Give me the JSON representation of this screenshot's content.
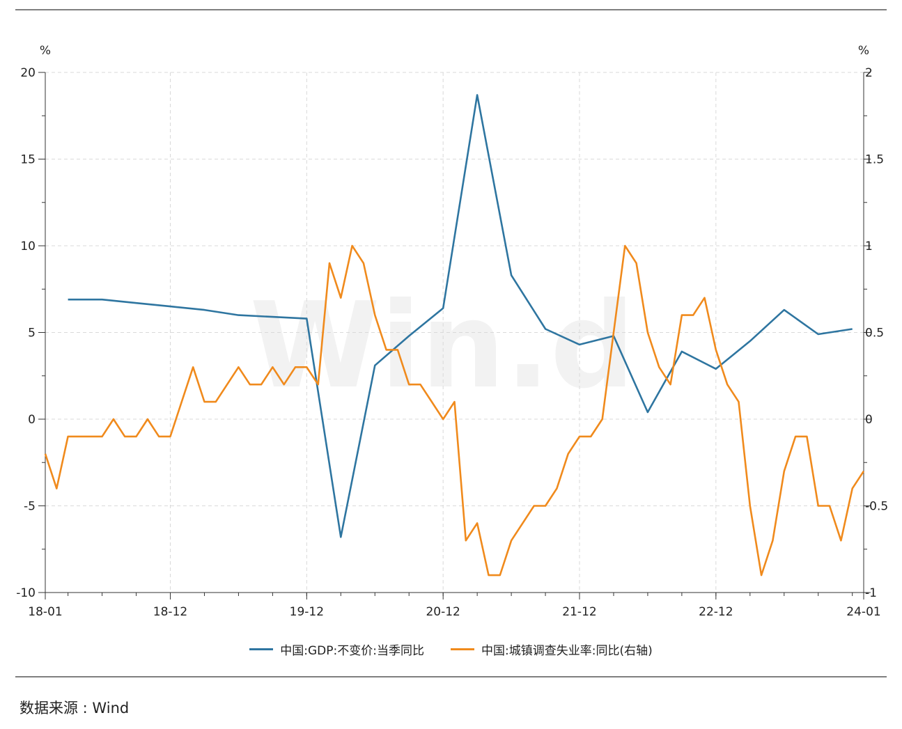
{
  "source_text": "数据来源 : Wind",
  "watermark": "Win.d",
  "chart_data": {
    "type": "line",
    "title": "",
    "x_ticks": [
      "18-01",
      "18-12",
      "19-12",
      "20-12",
      "21-12",
      "22-12",
      "24-01"
    ],
    "y_left": {
      "unit": "%",
      "range": [
        -10,
        20
      ],
      "ticks": [
        -10,
        -5,
        0,
        5,
        10,
        15,
        20
      ]
    },
    "y_right": {
      "unit": "%",
      "range": [
        -1,
        2
      ],
      "ticks": [
        -1,
        -0.5,
        0,
        0.5,
        1,
        1.5,
        2
      ]
    },
    "x_range": [
      "2018-01",
      "2024-01"
    ],
    "grid": true,
    "legend_position": "bottom",
    "series": [
      {
        "name": "中国:GDP:不变价:当季同比",
        "axis": "left",
        "color": "#2e75a0",
        "points": [
          [
            "2018-03",
            6.9
          ],
          [
            "2018-06",
            6.9
          ],
          [
            "2018-09",
            6.7
          ],
          [
            "2018-12",
            6.5
          ],
          [
            "2019-03",
            6.3
          ],
          [
            "2019-06",
            6.0
          ],
          [
            "2019-09",
            5.9
          ],
          [
            "2019-12",
            5.8
          ],
          [
            "2020-03",
            -6.8
          ],
          [
            "2020-06",
            3.1
          ],
          [
            "2020-09",
            4.8
          ],
          [
            "2020-12",
            6.4
          ],
          [
            "2021-03",
            18.7
          ],
          [
            "2021-06",
            8.3
          ],
          [
            "2021-09",
            5.2
          ],
          [
            "2021-12",
            4.3
          ],
          [
            "2022-03",
            4.8
          ],
          [
            "2022-06",
            0.4
          ],
          [
            "2022-09",
            3.9
          ],
          [
            "2022-12",
            2.9
          ],
          [
            "2023-03",
            4.5
          ],
          [
            "2023-06",
            6.3
          ],
          [
            "2023-09",
            4.9
          ],
          [
            "2023-12",
            5.2
          ]
        ]
      },
      {
        "name": "中国:城镇调查失业率:同比(右轴)",
        "axis": "right",
        "color": "#f08a1c",
        "points": [
          [
            "2018-01",
            -0.2
          ],
          [
            "2018-02",
            -0.4
          ],
          [
            "2018-03",
            -0.1
          ],
          [
            "2018-04",
            -0.1
          ],
          [
            "2018-05",
            -0.1
          ],
          [
            "2018-06",
            -0.1
          ],
          [
            "2018-07",
            0.0
          ],
          [
            "2018-08",
            -0.1
          ],
          [
            "2018-09",
            -0.1
          ],
          [
            "2018-10",
            0.0
          ],
          [
            "2018-11",
            -0.1
          ],
          [
            "2018-12",
            -0.1
          ],
          [
            "2019-01",
            0.1
          ],
          [
            "2019-02",
            0.3
          ],
          [
            "2019-03",
            0.1
          ],
          [
            "2019-04",
            0.1
          ],
          [
            "2019-05",
            0.2
          ],
          [
            "2019-06",
            0.3
          ],
          [
            "2019-07",
            0.2
          ],
          [
            "2019-08",
            0.2
          ],
          [
            "2019-09",
            0.3
          ],
          [
            "2019-10",
            0.2
          ],
          [
            "2019-11",
            0.3
          ],
          [
            "2019-12",
            0.3
          ],
          [
            "2020-01",
            0.2
          ],
          [
            "2020-02",
            0.9
          ],
          [
            "2020-03",
            0.7
          ],
          [
            "2020-04",
            1.0
          ],
          [
            "2020-05",
            0.9
          ],
          [
            "2020-06",
            0.6
          ],
          [
            "2020-07",
            0.4
          ],
          [
            "2020-08",
            0.4
          ],
          [
            "2020-09",
            0.2
          ],
          [
            "2020-10",
            0.2
          ],
          [
            "2020-11",
            0.1
          ],
          [
            "2020-12",
            0.0
          ],
          [
            "2021-01",
            0.1
          ],
          [
            "2021-02",
            -0.7
          ],
          [
            "2021-03",
            -0.6
          ],
          [
            "2021-04",
            -0.9
          ],
          [
            "2021-05",
            -0.9
          ],
          [
            "2021-06",
            -0.7
          ],
          [
            "2021-07",
            -0.6
          ],
          [
            "2021-08",
            -0.5
          ],
          [
            "2021-09",
            -0.5
          ],
          [
            "2021-10",
            -0.4
          ],
          [
            "2021-11",
            -0.2
          ],
          [
            "2021-12",
            -0.1
          ],
          [
            "2022-01",
            -0.1
          ],
          [
            "2022-02",
            0.0
          ],
          [
            "2022-03",
            0.5
          ],
          [
            "2022-04",
            1.0
          ],
          [
            "2022-05",
            0.9
          ],
          [
            "2022-06",
            0.5
          ],
          [
            "2022-07",
            0.3
          ],
          [
            "2022-08",
            0.2
          ],
          [
            "2022-09",
            0.6
          ],
          [
            "2022-10",
            0.6
          ],
          [
            "2022-11",
            0.7
          ],
          [
            "2022-12",
            0.4
          ],
          [
            "2023-01",
            0.2
          ],
          [
            "2023-02",
            0.1
          ],
          [
            "2023-03",
            -0.5
          ],
          [
            "2023-04",
            -0.9
          ],
          [
            "2023-05",
            -0.7
          ],
          [
            "2023-06",
            -0.3
          ],
          [
            "2023-07",
            -0.1
          ],
          [
            "2023-08",
            -0.1
          ],
          [
            "2023-09",
            -0.5
          ],
          [
            "2023-10",
            -0.5
          ],
          [
            "2023-11",
            -0.7
          ],
          [
            "2023-12",
            -0.4
          ],
          [
            "2024-01",
            -0.3
          ]
        ]
      }
    ]
  }
}
